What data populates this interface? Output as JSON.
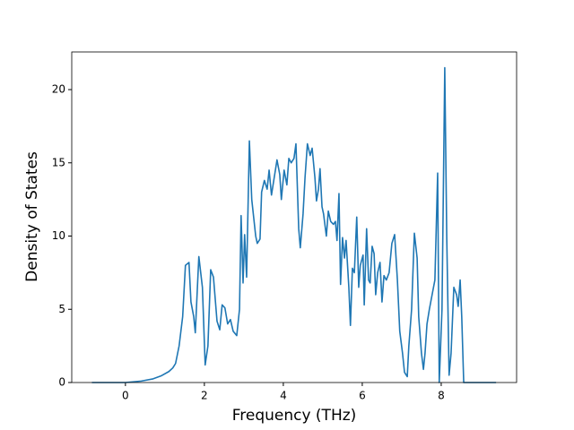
{
  "chart_data": {
    "type": "line",
    "xlabel": "Frequency (THz)",
    "ylabel": "Density of States",
    "xlim": [
      -1.36,
      9.91
    ],
    "ylim": [
      0,
      22.57
    ],
    "xticks": [
      0,
      2,
      4,
      6,
      8
    ],
    "yticks": [
      0,
      5,
      10,
      15,
      20
    ],
    "series": [
      {
        "name": "Density of States",
        "color": "#1f77b4",
        "x": [
          -0.85,
          0,
          0.4,
          0.7,
          0.9,
          1.1,
          1.2,
          1.27,
          1.36,
          1.45,
          1.52,
          1.61,
          1.66,
          1.73,
          1.77,
          1.86,
          1.95,
          2.02,
          2.09,
          2.16,
          2.23,
          2.32,
          2.39,
          2.45,
          2.52,
          2.59,
          2.66,
          2.73,
          2.82,
          2.89,
          2.93,
          2.98,
          3.02,
          3.07,
          3.14,
          3.2,
          3.3,
          3.34,
          3.41,
          3.45,
          3.52,
          3.59,
          3.64,
          3.7,
          3.77,
          3.84,
          3.91,
          3.95,
          4.02,
          4.09,
          4.14,
          4.2,
          4.27,
          4.32,
          4.39,
          4.43,
          4.5,
          4.55,
          4.61,
          4.68,
          4.73,
          4.8,
          4.84,
          4.89,
          4.93,
          4.98,
          5.02,
          5.09,
          5.14,
          5.2,
          5.27,
          5.32,
          5.36,
          5.41,
          5.45,
          5.5,
          5.55,
          5.59,
          5.66,
          5.7,
          5.75,
          5.8,
          5.86,
          5.91,
          5.95,
          6.02,
          6.05,
          6.11,
          6.16,
          6.2,
          6.25,
          6.3,
          6.34,
          6.39,
          6.45,
          6.5,
          6.55,
          6.61,
          6.68,
          6.75,
          6.82,
          6.89,
          6.95,
          7.02,
          7.07,
          7.14,
          7.18,
          7.25,
          7.32,
          7.39,
          7.43,
          7.5,
          7.55,
          7.59,
          7.64,
          7.7,
          7.77,
          7.84,
          7.91,
          7.95,
          8.02,
          8.09,
          8.14,
          8.2,
          8.25,
          8.32,
          8.39,
          8.43,
          8.48,
          8.52,
          8.57,
          9.39
        ],
        "values": [
          0,
          0,
          0.1,
          0.25,
          0.45,
          0.75,
          1.0,
          1.3,
          2.5,
          4.5,
          8.0,
          8.2,
          5.5,
          4.5,
          3.4,
          8.6,
          6.5,
          1.2,
          2.5,
          7.7,
          7.2,
          4.2,
          3.6,
          5.3,
          5.1,
          4.0,
          4.3,
          3.5,
          3.2,
          5,
          11.4,
          6.8,
          10.1,
          7.2,
          16.5,
          12.5,
          10,
          9.5,
          9.8,
          13,
          13.8,
          13.2,
          14.5,
          12.8,
          14,
          15.2,
          14.2,
          12.5,
          14.5,
          13.5,
          15.3,
          15,
          15.3,
          16.3,
          10.5,
          9.2,
          11.5,
          14,
          16.3,
          15.5,
          16,
          14,
          12.4,
          13.2,
          14.6,
          12,
          11.5,
          10,
          11.7,
          11,
          10.8,
          11,
          9.7,
          12.9,
          6.7,
          9.9,
          8.5,
          9.7,
          6.5,
          3.9,
          7.8,
          7.5,
          11.3,
          6.5,
          8.0,
          8.7,
          5.3,
          10.5,
          7,
          6.8,
          9.3,
          8.8,
          6,
          7.5,
          8.2,
          5.5,
          7.3,
          7.0,
          7.5,
          9.5,
          10.1,
          7,
          3.5,
          2,
          0.7,
          0.4,
          2.5,
          5,
          10.2,
          8.5,
          4.5,
          2,
          0.9,
          2,
          4,
          5,
          6,
          7,
          14.3,
          0,
          5,
          21.5,
          10,
          0.5,
          2,
          6.5,
          6,
          5.2,
          7,
          4.5,
          0,
          0
        ]
      }
    ]
  }
}
